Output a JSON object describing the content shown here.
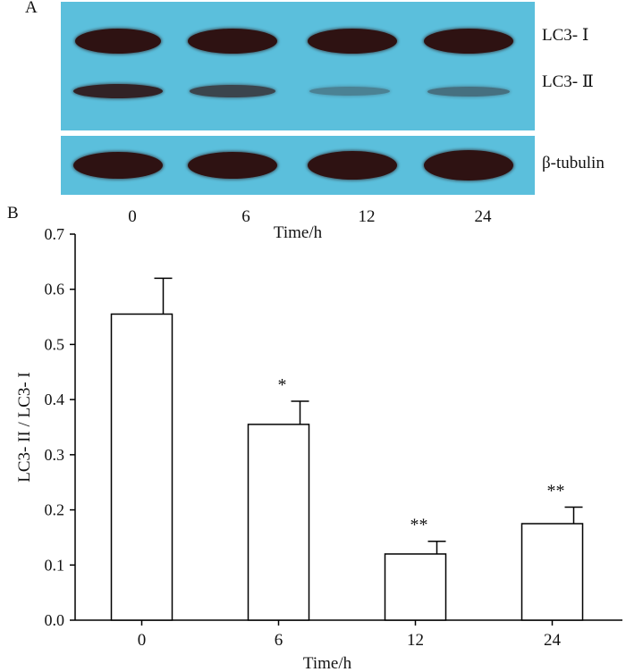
{
  "panels": {
    "a_label": "A",
    "b_label": "B"
  },
  "western_blot": {
    "band_labels": {
      "lc3_i": "LC3- Ⅰ",
      "lc3_ii": "LC3- Ⅱ",
      "tubulin": "β-tubulin"
    },
    "lanes": [
      "0",
      "6",
      "12",
      "24"
    ],
    "xlabel": "Time/h",
    "blot_color": "#5bbfdc",
    "band_color": "#2e1212"
  },
  "chart_data": {
    "type": "bar",
    "categories": [
      "0",
      "6",
      "12",
      "24"
    ],
    "values": [
      0.555,
      0.355,
      0.12,
      0.175
    ],
    "errors": [
      0.065,
      0.042,
      0.023,
      0.03
    ],
    "annotations": [
      "",
      "*",
      "**",
      "**"
    ],
    "xlabel": "Time/h",
    "ylabel": "LC3- II / LC3- I",
    "ylim": [
      0,
      0.7
    ],
    "yticks": [
      "0.0",
      "0.1",
      "0.2",
      "0.3",
      "0.4",
      "0.5",
      "0.6",
      "0.7"
    ],
    "grid": false,
    "bar_fill": "#ffffff",
    "bar_stroke": "#000000"
  }
}
